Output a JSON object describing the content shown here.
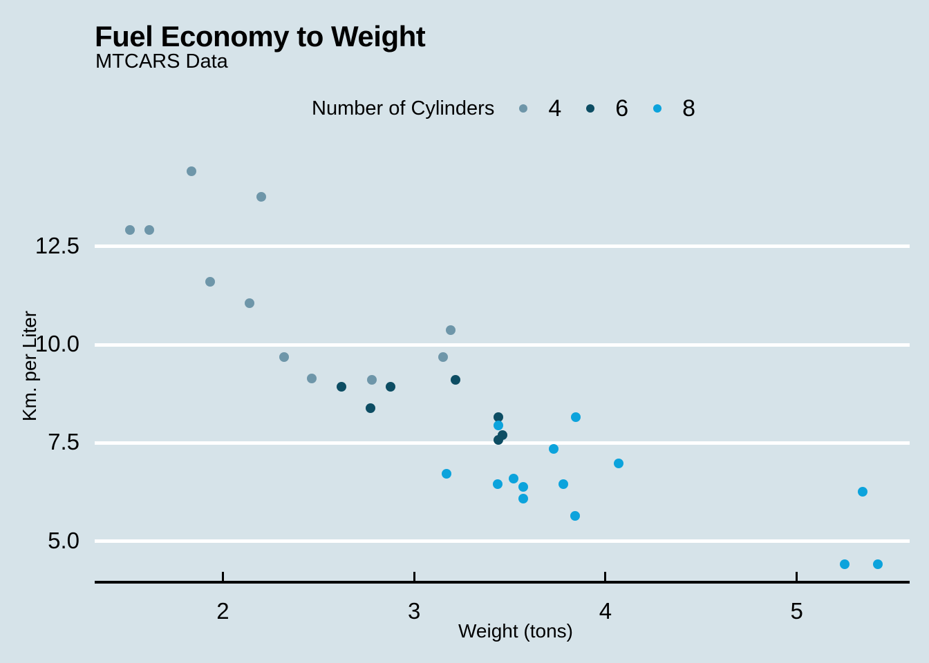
{
  "title": "Fuel Economy to Weight",
  "subtitle": "MTCARS Data",
  "legend": {
    "title": "Number of Cylinders",
    "items": [
      {
        "label": "4",
        "color": "#6e96a9"
      },
      {
        "label": "6",
        "color": "#0d4d63"
      },
      {
        "label": "8",
        "color": "#0ca3dc"
      }
    ]
  },
  "colors": {
    "background": "#d6e3e9",
    "gridline": "#ffffff",
    "axis": "#000000",
    "text": "#000000"
  },
  "chart_data": {
    "type": "scatter",
    "title": "Fuel Economy to Weight",
    "subtitle": "MTCARS Data",
    "xlabel": "Weight (tons)",
    "ylabel": "Km. per Liter",
    "legend_title": "Number of Cylinders",
    "legend_position": "top",
    "xlim": [
      1.33,
      5.59
    ],
    "ylim": [
      3.92,
      15.17
    ],
    "x_ticks": [
      2,
      3,
      4,
      5
    ],
    "x_tick_labels": [
      "2",
      "3",
      "4",
      "5"
    ],
    "y_ticks": [
      12.5,
      10.0,
      7.5,
      5.0
    ],
    "y_tick_labels": [
      "12.5",
      "10.0",
      "7.5",
      "5.0"
    ],
    "grid": "horizontal major gridlines only, white on light blue panel",
    "series": [
      {
        "name": "4",
        "color": "#6e96a9",
        "points": [
          [
            1.513,
            12.92
          ],
          [
            1.615,
            12.92
          ],
          [
            1.835,
            14.41
          ],
          [
            1.935,
            11.61
          ],
          [
            2.14,
            11.05
          ],
          [
            2.2,
            13.77
          ],
          [
            2.32,
            9.69
          ],
          [
            2.465,
            9.14
          ],
          [
            2.78,
            9.1
          ],
          [
            3.15,
            9.69
          ],
          [
            3.19,
            10.37
          ]
        ]
      },
      {
        "name": "6",
        "color": "#0d4d63",
        "points": [
          [
            2.62,
            8.93
          ],
          [
            2.77,
            8.38
          ],
          [
            2.875,
            8.93
          ],
          [
            3.215,
            9.1
          ],
          [
            3.44,
            8.16
          ],
          [
            3.44,
            7.57
          ],
          [
            3.46,
            7.7
          ]
        ]
      },
      {
        "name": "8",
        "color": "#0ca3dc",
        "points": [
          [
            3.17,
            6.72
          ],
          [
            3.435,
            6.46
          ],
          [
            3.44,
            7.95
          ],
          [
            3.52,
            6.59
          ],
          [
            3.57,
            6.08
          ],
          [
            3.57,
            6.38
          ],
          [
            3.73,
            7.35
          ],
          [
            3.78,
            6.46
          ],
          [
            3.84,
            5.65
          ],
          [
            3.845,
            8.16
          ],
          [
            4.07,
            6.97
          ],
          [
            5.25,
            4.42
          ],
          [
            5.345,
            6.25
          ],
          [
            5.424,
            4.42
          ]
        ]
      }
    ]
  }
}
